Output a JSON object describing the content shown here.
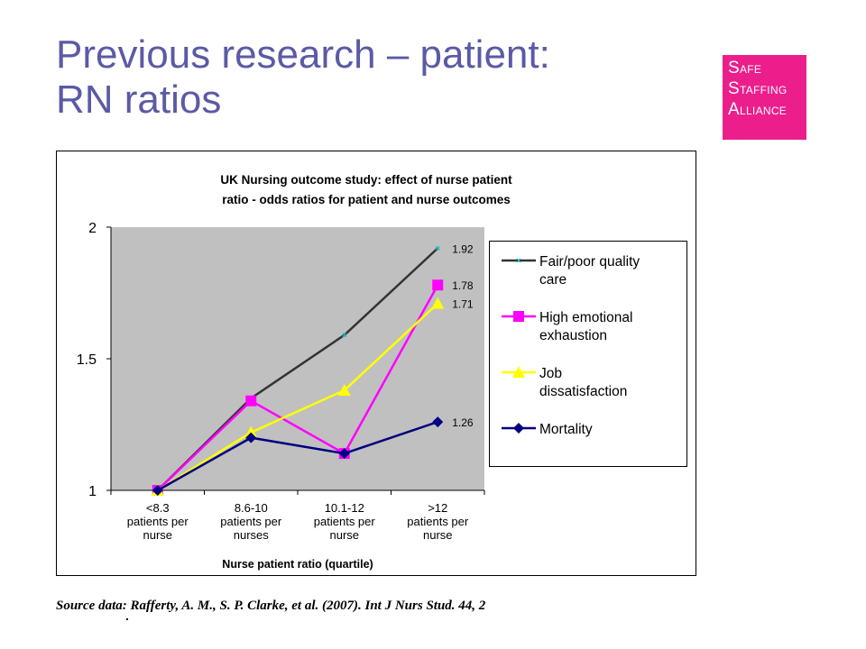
{
  "slide": {
    "title_line1": "Previous research – patient:",
    "title_line2": "RN ratios",
    "logo": {
      "lines": [
        "SAFE",
        "STAFFING",
        "ALLIANCE"
      ],
      "color": "#ec1e8c"
    },
    "source": "Source data: Rafferty, A. M., S. P. Clarke, et al. (2007). Int J Nurs Stud. 44, 2"
  },
  "chart_data": {
    "type": "line",
    "title_line1": "UK Nursing outcome study: effect of nurse patient",
    "title_line2": "ratio - odds ratios for patient and nurse outcomes",
    "xlabel": "Nurse patient ratio (quartile)",
    "ylabel": "",
    "ylim": [
      1,
      2
    ],
    "yticks": [
      "1",
      "1.5",
      "2"
    ],
    "categories": [
      [
        "<8.3",
        "patients per",
        "nurse"
      ],
      [
        "8.6-10",
        "patients per",
        "nurses"
      ],
      [
        "10.1-12",
        "patients per",
        "nurse"
      ],
      [
        ">12",
        "patients per",
        "nurse"
      ]
    ],
    "series": [
      {
        "name": "Fair/poor quality care",
        "legend": [
          "Fair/poor quality",
          "care"
        ],
        "color": "#333333",
        "marker": "x",
        "values": [
          1.0,
          1.35,
          1.59,
          1.92
        ],
        "end_label": "1.92"
      },
      {
        "name": "High emotional exhaustion",
        "legend": [
          "High emotional",
          "exhaustion"
        ],
        "color": "#ff00ff",
        "marker": "square",
        "values": [
          1.0,
          1.34,
          1.14,
          1.78
        ],
        "end_label": "1.78"
      },
      {
        "name": "Job dissatisfaction",
        "legend": [
          "Job",
          "dissatisfaction"
        ],
        "color": "#ffff00",
        "marker": "triangle",
        "values": [
          1.0,
          1.22,
          1.38,
          1.71
        ],
        "end_label": "1.71"
      },
      {
        "name": "Mortality",
        "legend": [
          "Mortality"
        ],
        "color": "#000080",
        "marker": "diamond",
        "values": [
          1.0,
          1.2,
          1.14,
          1.26
        ],
        "end_label": "1.26"
      }
    ],
    "plot_background": "#c0c0c0",
    "grid": false,
    "legend_position": "right"
  }
}
